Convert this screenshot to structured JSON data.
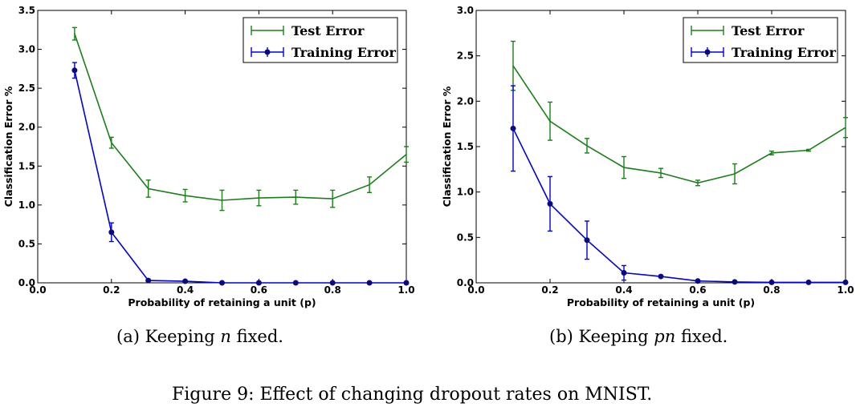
{
  "figure": {
    "caption": "Figure 9: Effect of changing dropout rates on MNIST.",
    "subcaptions": [
      {
        "prefix": "(a) Keeping ",
        "var": "n",
        "suffix": " fixed."
      },
      {
        "prefix": "(b) Keeping ",
        "var": "pn",
        "suffix": " fixed."
      }
    ]
  },
  "colors": {
    "test": "#1a7f1a",
    "train": "#0000e0",
    "marker": "#0a0a80"
  },
  "chart_data": [
    {
      "type": "line",
      "title": "",
      "xlabel": "Probability of retaining a unit (p)",
      "ylabel": "Classification Error %",
      "xlim": [
        0.0,
        1.0
      ],
      "ylim": [
        0.0,
        3.5
      ],
      "xticks": [
        0.0,
        0.2,
        0.4,
        0.6,
        0.8,
        1.0
      ],
      "xtick_labels": [
        "0.0",
        "0.2",
        "0.4",
        "0.6",
        "0.8",
        "1.0"
      ],
      "yticks": [
        0.0,
        0.5,
        1.0,
        1.5,
        2.0,
        2.5,
        3.0,
        3.5
      ],
      "ytick_labels": [
        "0.0",
        "0.5",
        "1.0",
        "1.5",
        "2.0",
        "2.5",
        "3.0",
        "3.5"
      ],
      "legend": "top-right",
      "series": [
        {
          "name": "Test Error",
          "color_key": "test",
          "markers": false,
          "x": [
            0.1,
            0.2,
            0.3,
            0.4,
            0.5,
            0.6,
            0.7,
            0.8,
            0.9,
            1.0
          ],
          "y": [
            3.2,
            1.8,
            1.21,
            1.12,
            1.06,
            1.09,
            1.1,
            1.08,
            1.26,
            1.65
          ],
          "err": [
            0.08,
            0.07,
            0.11,
            0.08,
            0.13,
            0.1,
            0.09,
            0.11,
            0.1,
            0.1
          ]
        },
        {
          "name": "Training Error",
          "color_key": "train",
          "markers": true,
          "x": [
            0.1,
            0.2,
            0.3,
            0.4,
            0.5,
            0.6,
            0.7,
            0.8,
            0.9,
            1.0
          ],
          "y": [
            2.73,
            0.65,
            0.03,
            0.02,
            0.0,
            0.0,
            0.0,
            0.0,
            0.0,
            0.0
          ],
          "err": [
            0.1,
            0.12,
            0.0,
            0.0,
            0.0,
            0.0,
            0.0,
            0.0,
            0.0,
            0.0
          ]
        }
      ]
    },
    {
      "type": "line",
      "title": "",
      "xlabel": "Probability of retaining a unit (p)",
      "ylabel": "Classification Error %",
      "xlim": [
        0.0,
        1.0
      ],
      "ylim": [
        0.0,
        3.0
      ],
      "xticks": [
        0.0,
        0.2,
        0.4,
        0.6,
        0.8,
        1.0
      ],
      "xtick_labels": [
        "0.0",
        "0.2",
        "0.4",
        "0.6",
        "0.8",
        "1.0"
      ],
      "yticks": [
        0.0,
        0.5,
        1.0,
        1.5,
        2.0,
        2.5,
        3.0
      ],
      "ytick_labels": [
        "0.0",
        "0.5",
        "1.0",
        "1.5",
        "2.0",
        "2.5",
        "3.0"
      ],
      "legend": "top-right",
      "series": [
        {
          "name": "Test Error",
          "color_key": "test",
          "markers": false,
          "x": [
            0.1,
            0.2,
            0.3,
            0.4,
            0.5,
            0.6,
            0.7,
            0.8,
            0.9,
            1.0
          ],
          "y": [
            2.39,
            1.78,
            1.51,
            1.27,
            1.21,
            1.1,
            1.2,
            1.43,
            1.46,
            1.71
          ],
          "err": [
            0.27,
            0.21,
            0.08,
            0.12,
            0.05,
            0.03,
            0.11,
            0.02,
            0.01,
            0.11
          ]
        },
        {
          "name": "Training Error",
          "color_key": "train",
          "markers": true,
          "x": [
            0.1,
            0.2,
            0.3,
            0.4,
            0.5,
            0.6,
            0.7,
            0.8,
            0.9,
            1.0
          ],
          "y": [
            1.7,
            0.87,
            0.47,
            0.11,
            0.07,
            0.02,
            0.01,
            0.005,
            0.005,
            0.005
          ],
          "err": [
            0.47,
            0.3,
            0.21,
            0.08,
            0.0,
            0.0,
            0.0,
            0.0,
            0.0,
            0.0
          ]
        }
      ]
    }
  ]
}
